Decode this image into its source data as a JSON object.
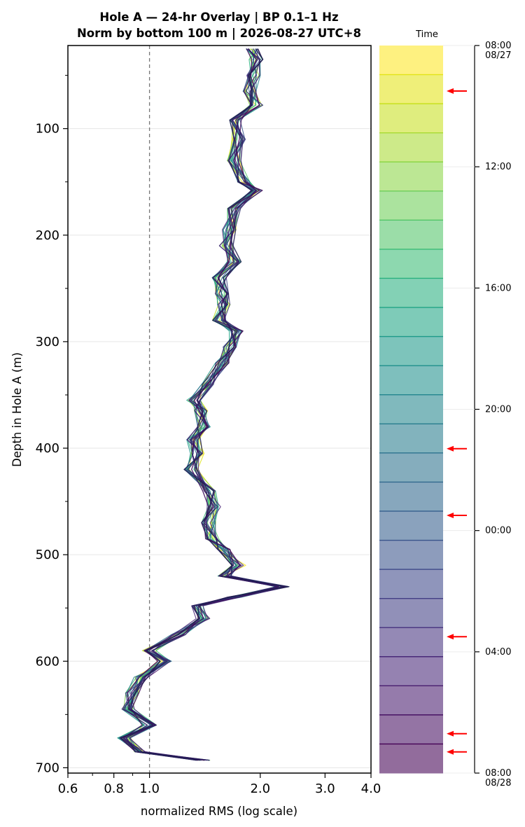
{
  "chart_data": {
    "type": "line",
    "title": "Hole A — 24-hr Overlay  |  BP 0.1–1 Hz",
    "subtitle": "Norm by bottom 100 m  |  2026-08-27 UTC+8",
    "xlabel": "normalized RMS  (log scale)",
    "ylabel": "Depth in Hole A (m)",
    "xscale": "log",
    "xlim": [
      0.6,
      4.0
    ],
    "ylim": [
      705,
      22
    ],
    "x_ticks": [
      "0.6",
      "0.8",
      "1.0",
      "2.0",
      "3.0",
      "4.0"
    ],
    "y_ticks": [
      "100",
      "200",
      "300",
      "400",
      "500",
      "600",
      "700"
    ],
    "reference_line_x": 1.0,
    "grid": true,
    "profile_depth": [
      25,
      35,
      50,
      65,
      78,
      92,
      110,
      130,
      150,
      158,
      175,
      195,
      210,
      225,
      240,
      255,
      265,
      280,
      290,
      305,
      320,
      340,
      355,
      365,
      380,
      392,
      405,
      420,
      440,
      455,
      470,
      485,
      495,
      510,
      520,
      530,
      540,
      548,
      560,
      575,
      590,
      600,
      615,
      630,
      645,
      660,
      672,
      685,
      693
    ],
    "profile_rms": [
      1.9,
      1.95,
      1.92,
      1.88,
      1.95,
      1.72,
      1.75,
      1.7,
      1.8,
      1.95,
      1.7,
      1.65,
      1.62,
      1.7,
      1.55,
      1.58,
      1.6,
      1.55,
      1.72,
      1.65,
      1.58,
      1.45,
      1.32,
      1.38,
      1.4,
      1.32,
      1.35,
      1.3,
      1.45,
      1.5,
      1.45,
      1.48,
      1.6,
      1.75,
      1.6,
      2.3,
      1.7,
      1.35,
      1.4,
      1.2,
      1.0,
      1.1,
      0.95,
      0.9,
      0.88,
      1.0,
      0.85,
      0.95,
      1.4
    ],
    "series": [
      {
        "time": "08:00",
        "color": "#fde725"
      },
      {
        "time": "09:00",
        "color": "#dde318"
      },
      {
        "time": "10:00",
        "color": "#bade28"
      },
      {
        "time": "11:00",
        "color": "#95d840"
      },
      {
        "time": "12:00",
        "color": "#75d054"
      },
      {
        "time": "13:00",
        "color": "#56c667"
      },
      {
        "time": "14:00",
        "color": "#3dbc74"
      },
      {
        "time": "15:00",
        "color": "#29af7f"
      },
      {
        "time": "16:00",
        "color": "#20a386"
      },
      {
        "time": "17:00",
        "color": "#1f968b"
      },
      {
        "time": "18:00",
        "color": "#238a8d"
      },
      {
        "time": "19:00",
        "color": "#287d8e"
      },
      {
        "time": "20:00",
        "color": "#2d718e"
      },
      {
        "time": "21:00",
        "color": "#33638d"
      },
      {
        "time": "22:00",
        "color": "#39568c"
      },
      {
        "time": "23:00",
        "color": "#404788"
      },
      {
        "time": "00:00",
        "color": "#453781"
      },
      {
        "time": "01:00",
        "color": "#482576"
      },
      {
        "time": "02:00",
        "color": "#481467"
      },
      {
        "time": "03:00",
        "color": "#440154"
      },
      {
        "time": "04:00",
        "color": "#3d0e5b"
      },
      {
        "time": "05:00",
        "color": "#2e1a63"
      },
      {
        "time": "06:00",
        "color": "#25235e"
      },
      {
        "time": "07:00",
        "color": "#1e1f4f"
      }
    ],
    "colorbar": {
      "label": "Time",
      "ticks": [
        {
          "time": "08:00",
          "date": "08/27",
          "hour": 0
        },
        {
          "time": "12:00",
          "date": "",
          "hour": 4
        },
        {
          "time": "16:00",
          "date": "",
          "hour": 8
        },
        {
          "time": "20:00",
          "date": "",
          "hour": 12
        },
        {
          "time": "00:00",
          "date": "",
          "hour": 16
        },
        {
          "time": "04:00",
          "date": "",
          "hour": 20
        },
        {
          "time": "08:00",
          "date": "08/28",
          "hour": 24
        }
      ],
      "band_colors": [
        "#fde725",
        "#e3e418",
        "#c8e020",
        "#a8db34",
        "#8bd646",
        "#6ece58",
        "#52c569",
        "#3bbb75",
        "#2ab07f",
        "#21a585",
        "#1f9a8a",
        "#21908d",
        "#24868e",
        "#287c8e",
        "#2c728e",
        "#31688e",
        "#355e8d",
        "#3a548c",
        "#3e4989",
        "#423f85",
        "#46337f",
        "#482878",
        "#481c6e",
        "#471063",
        "#440154"
      ],
      "highlight_arrows_hour": [
        1.5,
        13.3,
        15.5,
        19.5,
        22.7,
        23.3
      ],
      "arrow_color": "#ff0000"
    }
  }
}
